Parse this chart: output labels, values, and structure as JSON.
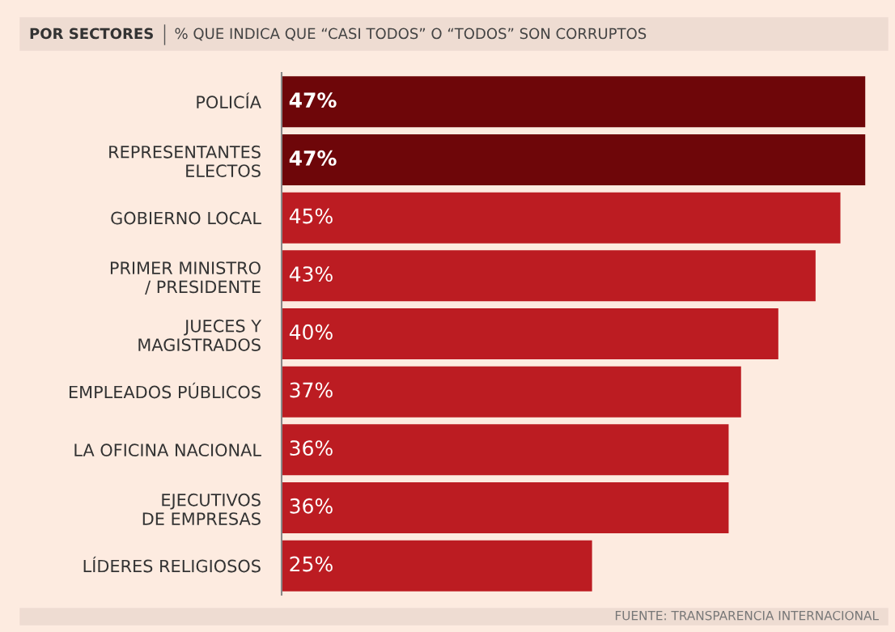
{
  "chart_data": {
    "type": "bar",
    "orientation": "horizontal",
    "title": "POR SECTORES",
    "subtitle": "% QUE INDICA QUE “CASI TODOS” O “TODOS” SON CORRUPTOS",
    "categories": [
      "POLICÍA",
      "REPRESENTANTES\nELECTOS",
      "GOBIERNO LOCAL",
      "PRIMER MINISTRO\n/ PRESIDENTE",
      "JUECES Y\nMAGISTRADOS",
      "EMPLEADOS PÚBLICOS",
      "LA OFICINA NACIONAL",
      "EJECUTIVOS\nDE EMPRESAS",
      "LÍDERES RELIGIOSOS"
    ],
    "values": [
      47,
      47,
      45,
      43,
      40,
      37,
      36,
      36,
      25
    ],
    "colors": [
      "#6e0609",
      "#6e0609",
      "#bc1c22",
      "#bc1c22",
      "#bc1c22",
      "#bc1c22",
      "#bc1c22",
      "#bc1c22",
      "#bc1c22"
    ],
    "value_labels": [
      "47%",
      "47%",
      "45%",
      "43%",
      "40%",
      "37%",
      "36%",
      "36%",
      "25%"
    ],
    "annotations": [
      "FUENTE: TRANSPARENCIA INTERNACIONAL"
    ],
    "grid": false,
    "legend": false
  }
}
